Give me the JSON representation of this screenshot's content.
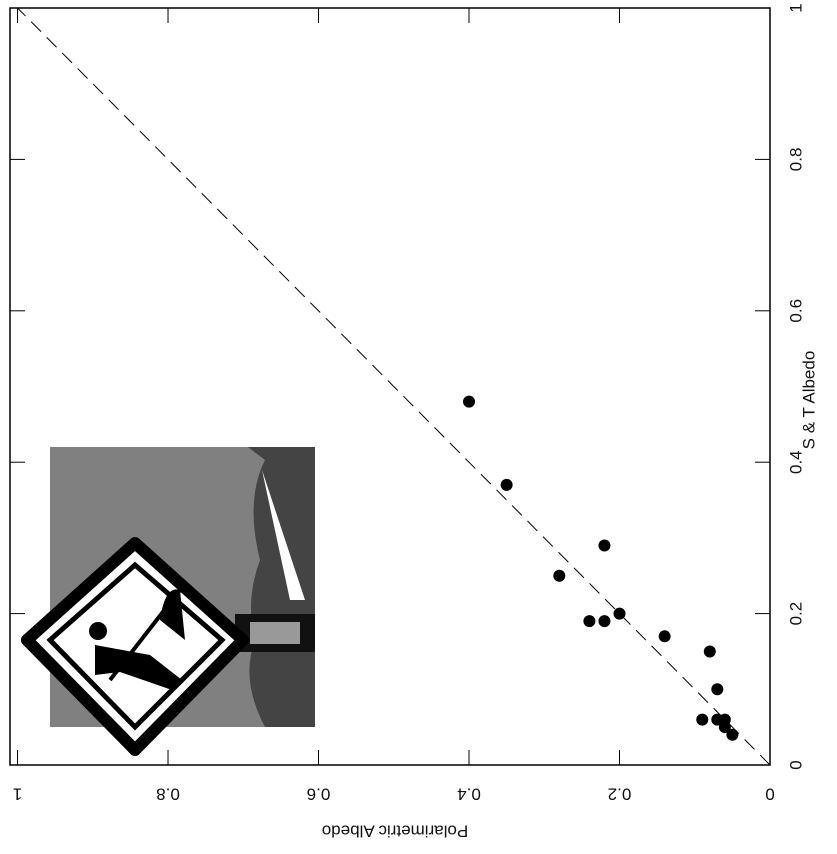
{
  "chart_data": {
    "type": "scatter",
    "x_label": "S & T Albedo",
    "y_label": "Polarimetric Albedo",
    "xlim": [
      0,
      1
    ],
    "ylim": [
      0,
      1.01
    ],
    "xticks": [
      0,
      0.2,
      0.4,
      0.6,
      0.8,
      1
    ],
    "yticks": [
      0,
      0.2,
      0.4,
      0.6,
      0.8,
      1
    ],
    "color": "#000000",
    "x": [
      0.48,
      0.37,
      0.25,
      0.29,
      0.19,
      0.19,
      0.2,
      0.17,
      0.15,
      0.1,
      0.06,
      0.06,
      0.06,
      0.05,
      0.04
    ],
    "values": [
      0.4,
      0.35,
      0.28,
      0.22,
      0.24,
      0.22,
      0.2,
      0.14,
      0.08,
      0.07,
      0.09,
      0.07,
      0.06,
      0.06,
      0.05
    ]
  }
}
